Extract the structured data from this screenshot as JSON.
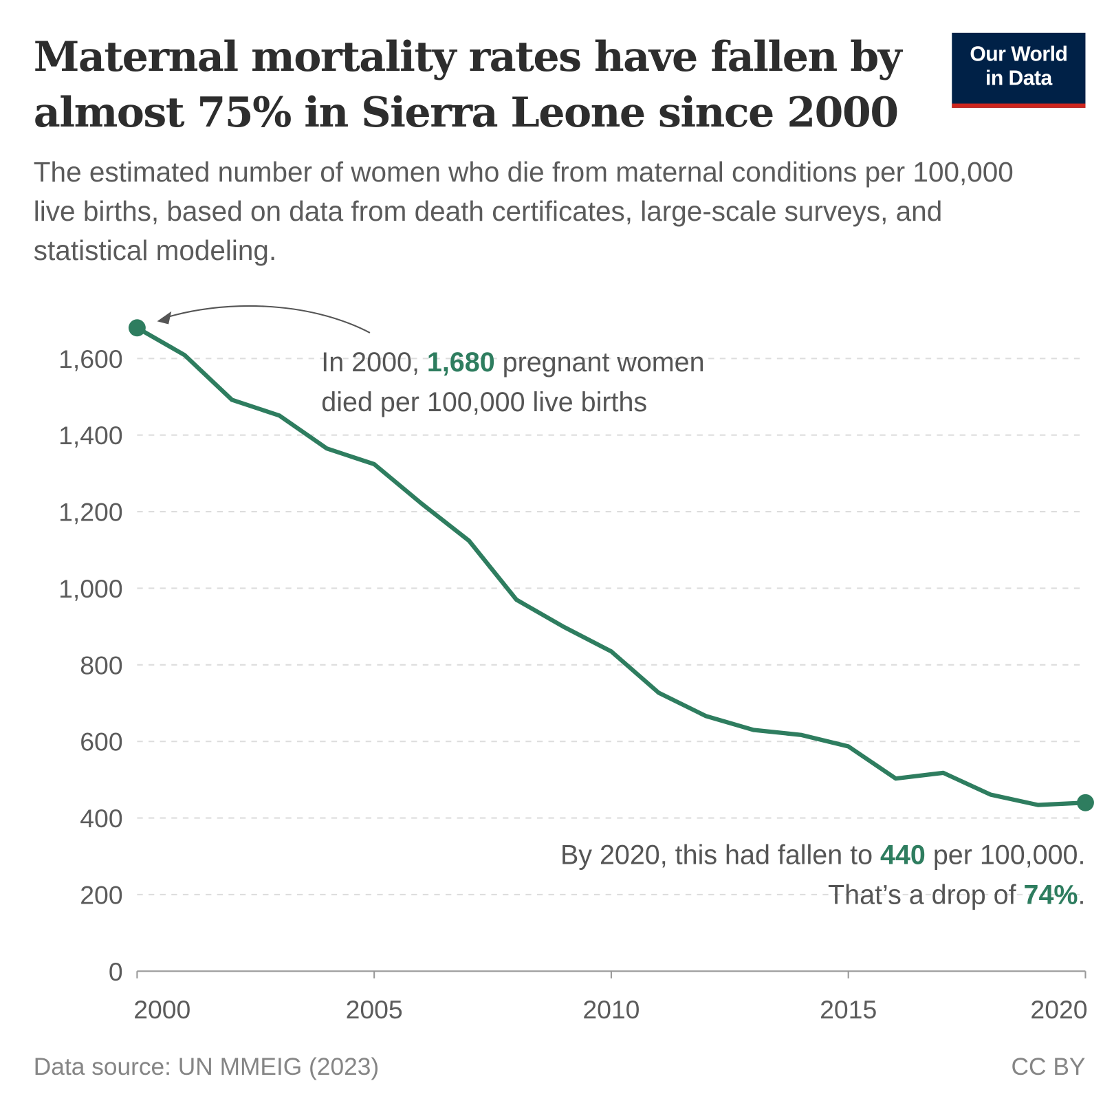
{
  "header": {
    "title": "Maternal mortality rates have fallen by almost 75% in Sierra Leone since 2000",
    "subtitle": "The estimated number of women who die from maternal conditions per 100,000 live births, based on data from death certificates, large-scale surveys, and statistical modeling.",
    "logo_line1": "Our World",
    "logo_line2": "in Data"
  },
  "annotations": {
    "start_pre": "In 2000, ",
    "start_value": "1,680",
    "start_post": " pregnant women",
    "start_line2": "died per 100,000 live births",
    "end_pre": "By 2020, this had fallen to ",
    "end_value": "440",
    "end_post": " per 100,000.",
    "drop_pre": "That’s a drop of ",
    "drop_value": "74%",
    "drop_post": "."
  },
  "footer": {
    "source": "Data source: UN MMEIG (2023)",
    "license": "CC BY"
  },
  "colors": {
    "line": "#2e7d5f",
    "grid": "#dddddd",
    "axis": "#999999",
    "text": "#5b5b5b"
  },
  "chart_data": {
    "type": "line",
    "title": "Maternal mortality rates have fallen by almost 75% in Sierra Leone since 2000",
    "xlabel": "",
    "ylabel": "",
    "xlim": [
      2000,
      2020
    ],
    "ylim": [
      0,
      1600
    ],
    "x_ticks": [
      "2000",
      "2005",
      "2010",
      "2015",
      "2020"
    ],
    "y_ticks": [
      "0",
      "200",
      "400",
      "600",
      "800",
      "1,000",
      "1,200",
      "1,400",
      "1,600"
    ],
    "grid": "horizontal dashed",
    "series": [
      {
        "name": "Sierra Leone",
        "x": [
          2000,
          2001,
          2002,
          2003,
          2004,
          2005,
          2006,
          2007,
          2008,
          2009,
          2010,
          2011,
          2012,
          2013,
          2014,
          2015,
          2016,
          2017,
          2018,
          2019,
          2020
        ],
        "values": [
          1680,
          1609,
          1492,
          1451,
          1365,
          1324,
          1221,
          1124,
          970,
          899,
          835,
          727,
          666,
          630,
          617,
          587,
          503,
          518,
          461,
          434,
          440
        ]
      }
    ]
  }
}
